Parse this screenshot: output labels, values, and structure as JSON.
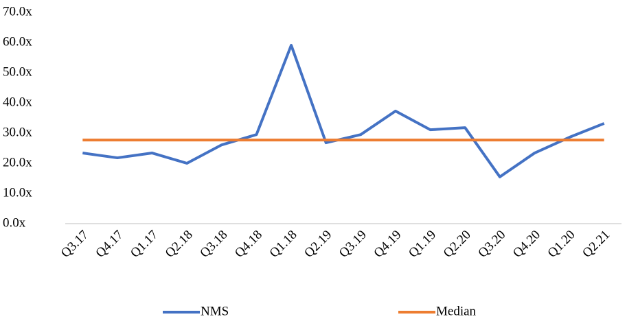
{
  "chart_data": {
    "type": "line",
    "categories": [
      "Q3.17",
      "Q4.17",
      "Q1.17",
      "Q2.18",
      "Q3.18",
      "Q4.18",
      "Q1.18",
      "Q2.19",
      "Q3.19",
      "Q4.19",
      "Q1.19",
      "Q2.20",
      "Q3.20",
      "Q4.20",
      "Q1.20",
      "Q2.21"
    ],
    "series": [
      {
        "name": "NMS",
        "color": "#4472c4",
        "values": [
          23.4,
          21.8,
          23.4,
          20.0,
          26.1,
          29.5,
          59.1,
          26.8,
          29.5,
          37.3,
          31.1,
          31.8,
          15.5,
          23.4,
          28.6,
          33.2
        ]
      },
      {
        "name": "Median",
        "color": "#ed7d31",
        "values": [
          27.7,
          27.7,
          27.7,
          27.7,
          27.7,
          27.7,
          27.7,
          27.7,
          27.7,
          27.7,
          27.7,
          27.7,
          27.7,
          27.7,
          27.7,
          27.7
        ]
      }
    ],
    "ylim": [
      0,
      70
    ],
    "yticks": [
      {
        "value": 0,
        "label": "0.0x"
      },
      {
        "value": 10,
        "label": "10.0x"
      },
      {
        "value": 20,
        "label": "20.0x"
      },
      {
        "value": 30,
        "label": "30.0x"
      },
      {
        "value": 40,
        "label": "40.0x"
      },
      {
        "value": 50,
        "label": "50.0x"
      },
      {
        "value": 60,
        "label": "60.0x"
      },
      {
        "value": 70,
        "label": "70.0x"
      }
    ],
    "grid": false,
    "legend": "bottom"
  }
}
